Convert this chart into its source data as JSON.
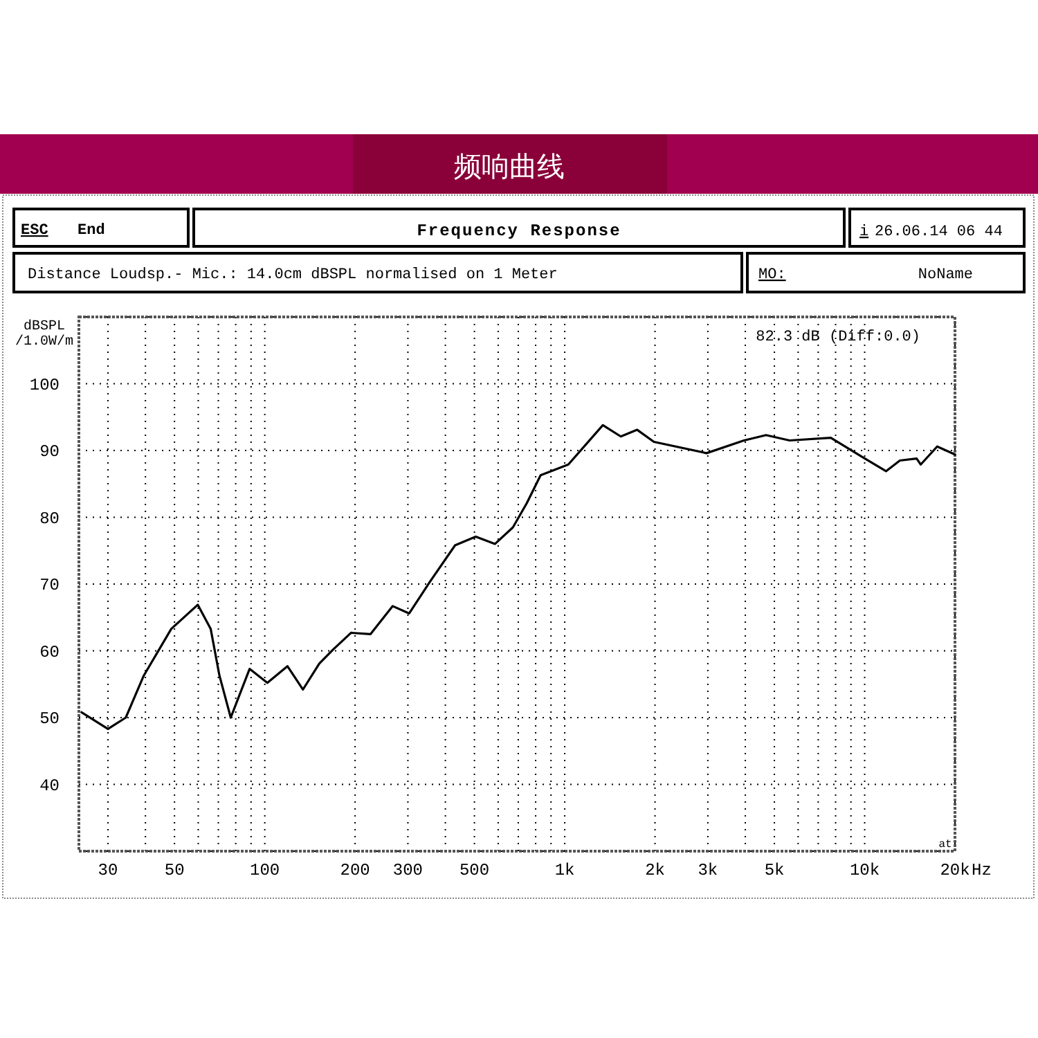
{
  "chart_data": {
    "type": "line",
    "title": "频响曲线",
    "subtitle": "Frequency Response",
    "ylabel": "dBSPL /1.0W/m",
    "annotations": [
      "ESC",
      "End",
      "i",
      "26.06.14 06 44",
      "Distance Loudsp.- Mic.: 14.0cm dBSPL normalised on 1 Meter",
      "MO:",
      "NoName",
      "82.3 dB (Diff:0.0)",
      "at"
    ],
    "log": "x",
    "xlim": [
      24,
      20000
    ],
    "ylim": [
      30,
      110
    ],
    "xticks": [
      {
        "value": 30,
        "label": "30"
      },
      {
        "value": 40,
        "label": null
      },
      {
        "value": 50,
        "label": "50"
      },
      {
        "value": 60,
        "label": null
      },
      {
        "value": 70,
        "label": null
      },
      {
        "value": 80,
        "label": null
      },
      {
        "value": 90,
        "label": null
      },
      {
        "value": 100,
        "label": "100"
      },
      {
        "value": 200,
        "label": "200"
      },
      {
        "value": 300,
        "label": "300"
      },
      {
        "value": 400,
        "label": null
      },
      {
        "value": 500,
        "label": "500"
      },
      {
        "value": 600,
        "label": null
      },
      {
        "value": 700,
        "label": null
      },
      {
        "value": 800,
        "label": null
      },
      {
        "value": 900,
        "label": null
      },
      {
        "value": 1000,
        "label": "1k"
      },
      {
        "value": 2000,
        "label": "2k"
      },
      {
        "value": 3000,
        "label": "3k"
      },
      {
        "value": 4000,
        "label": null
      },
      {
        "value": 5000,
        "label": "5k"
      },
      {
        "value": 6000,
        "label": null
      },
      {
        "value": 7000,
        "label": null
      },
      {
        "value": 8000,
        "label": null
      },
      {
        "value": 9000,
        "label": null
      },
      {
        "value": 10000,
        "label": "10k"
      },
      {
        "value": 20000,
        "label": "20k"
      }
    ],
    "xlabel": "Hz",
    "yticks": [
      {
        "value": 30,
        "label": null
      },
      40,
      50,
      60,
      70,
      80,
      90,
      100,
      {
        "value": 110,
        "label": null
      }
    ],
    "grid": true,
    "line_style": "solid",
    "marker": "none",
    "series": [
      {
        "color": "#000000",
        "x": [
          24.5,
          30,
          34.4,
          39.5,
          48.8,
          59.8,
          66,
          70.6,
          77,
          89,
          102,
          119,
          134,
          152,
          169,
          194,
          225,
          267,
          303,
          356,
          431,
          505,
          585,
          672,
          747,
          831,
          1028,
          1340,
          1538,
          1744,
          1983,
          2970,
          3958,
          4690,
          5620,
          7710,
          9840,
          11780,
          13100,
          14900,
          15380,
          17450,
          20000
        ],
        "values": [
          50.8,
          48.3,
          50,
          56.3,
          63.3,
          66.9,
          63.3,
          56.3,
          50,
          57.3,
          55.2,
          57.7,
          54.2,
          58.1,
          60.2,
          62.7,
          62.5,
          66.7,
          65.6,
          70.4,
          75.8,
          77.1,
          76,
          78.5,
          82.1,
          86.3,
          87.9,
          93.8,
          92.1,
          93.1,
          91.3,
          89.6,
          91.5,
          92.3,
          91.5,
          91.9,
          89,
          86.9,
          88.5,
          88.8,
          87.9,
          90.6,
          89.4
        ]
      }
    ]
  }
}
